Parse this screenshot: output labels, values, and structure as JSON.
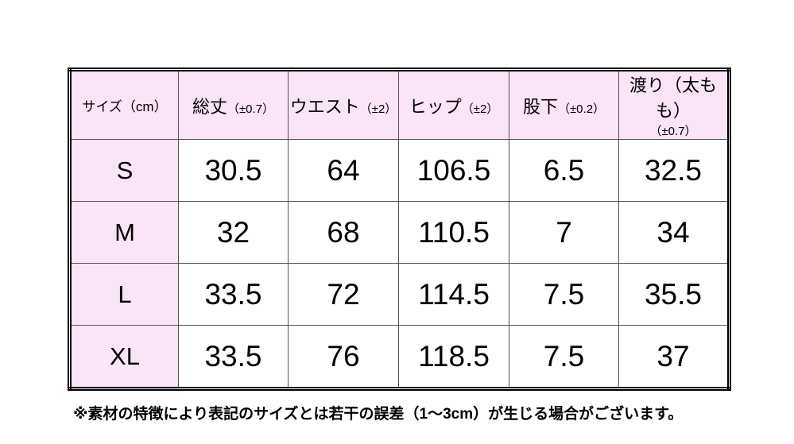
{
  "table": {
    "header": [
      {
        "main": "サイズ（cm）"
      },
      {
        "main": "総丈",
        "sub": "（±0.7）"
      },
      {
        "main": "ウエスト",
        "sub": "（±2）"
      },
      {
        "main": "ヒップ",
        "sub": "（±2）"
      },
      {
        "main": "股下",
        "sub": "（±0.2）"
      },
      {
        "main": "渡り（太もも）",
        "sub": "（±0.7）"
      }
    ],
    "rows": [
      [
        "S",
        "30.5",
        "64",
        "106.5",
        "6.5",
        "32.5"
      ],
      [
        "M",
        "32",
        "68",
        "110.5",
        "7",
        "34"
      ],
      [
        "L",
        "33.5",
        "72",
        "114.5",
        "7.5",
        "35.5"
      ],
      [
        "XL",
        "33.5",
        "76",
        "118.5",
        "7.5",
        "37"
      ]
    ]
  },
  "note": "※素材の特徴により表記のサイズとは若干の誤差（1～3cm）が生じる場合がございます。"
}
